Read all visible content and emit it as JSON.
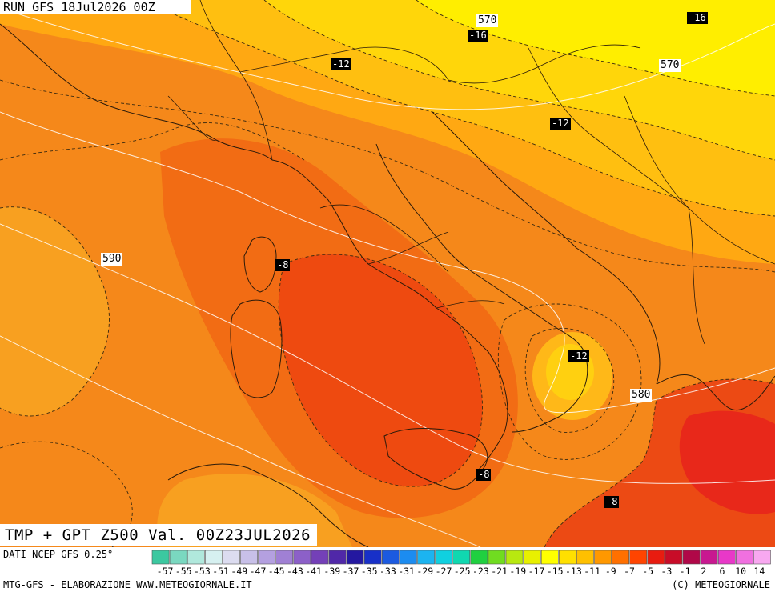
{
  "header": {
    "run_label": "RUN GFS 18Jul2026 00Z"
  },
  "footer": {
    "title": "TMP + GPT Z500 Val. 00Z23JUL2026",
    "source": "DATI NCEP GFS 0.25°",
    "credit_left": "MTG-GFS - ELABORAZIONE WWW.METEOGIORNALE.IT",
    "credit_right": "(C) METEOGIORNALE"
  },
  "geopotential_labels": [
    "570",
    "570",
    "590",
    "580"
  ],
  "temperature_labels": [
    "-16",
    "-16",
    "-12",
    "-12",
    "-8",
    "-12",
    "-8",
    "-8"
  ],
  "colorbar": {
    "labels": [
      "-57",
      "-55",
      "-53",
      "-51",
      "-49",
      "-47",
      "-45",
      "-43",
      "-41",
      "-39",
      "-37",
      "-35",
      "-33",
      "-31",
      "-29",
      "-27",
      "-25",
      "-23",
      "-21",
      "-19",
      "-17",
      "-15",
      "-13",
      "-11",
      "-9",
      "-7",
      "-5",
      "-3",
      "-1",
      "2",
      "6",
      "10",
      "14"
    ],
    "colors": [
      "#3cc8a0",
      "#7ad8c0",
      "#b0e8dc",
      "#d6f0f0",
      "#dcdcf0",
      "#c8c0e8",
      "#b4a0e0",
      "#a080d4",
      "#8c60c8",
      "#7440b8",
      "#5028a8",
      "#2418a0",
      "#1830c8",
      "#1c5ae0",
      "#1c8cf0",
      "#1cb4f0",
      "#10d0e0",
      "#10d8b0",
      "#20d040",
      "#70dc20",
      "#b8e810",
      "#e8f000",
      "#ffff00",
      "#ffe000",
      "#ffc000",
      "#ff9800",
      "#ff7000",
      "#ff4400",
      "#e81c10",
      "#c80c28",
      "#b00848",
      "#c81890",
      "#e838c8",
      "#f070e0",
      "#f8a8f0"
    ]
  },
  "colors": {
    "background_warm": "#f58a18",
    "core_hot": "#ee4a10",
    "mid_hot": "#f06c12",
    "cool_north": "#ffee00",
    "cool_band": "#ffc410",
    "aegean_hot": "#e8281a"
  }
}
